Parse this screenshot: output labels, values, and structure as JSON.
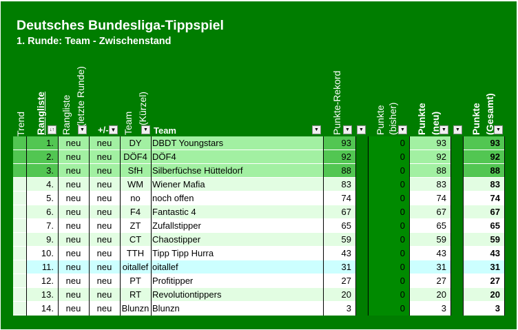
{
  "title": "Deutsches Bundesliga-Tippspiel",
  "subtitle": "1. Runde: Team - Zwischenstand",
  "colors": {
    "background": "#007d00",
    "top3": "#a2f0a2",
    "top3_strong": "#52c652",
    "row_light": "#e2fde2",
    "row_white": "#ffffff",
    "row_cyan": "#ccffff",
    "punkte_col": "#008a00"
  },
  "headers": {
    "trend": "Trend",
    "rangliste": "Rangliste",
    "rangliste_letzte_1": "Rangliste",
    "rangliste_letzte_2": "(letzte Runde)",
    "plusminus": "+/-",
    "team_kuerzel_1": "Team",
    "team_kuerzel_2": "(Kürzel)",
    "team": "Team",
    "punkte_rekord": "Punkte-Rekord",
    "punkte_bisher_1": "Punkte",
    "punkte_bisher_2": "(bisher)",
    "punkte_neu_1": "Punkte",
    "punkte_neu_2": "(neu)",
    "punkte_gesamt_1": "Punkte",
    "punkte_gesamt_2": "(Gesamt)"
  },
  "icons": {
    "dropdown": "dropdown-arrow-icon",
    "sort": "sort-ascending-icon",
    "filter": "filter-icon"
  },
  "rows": [
    {
      "rank": "1.",
      "prev": "neu",
      "pm": "neu",
      "abbr": "DY",
      "team": "DBDT Youngstars",
      "rekord": "93",
      "bisher": "0",
      "neu": "93",
      "gesamt": "93",
      "style": "top"
    },
    {
      "rank": "2.",
      "prev": "neu",
      "pm": "neu",
      "abbr": "DÖF4",
      "team": "DÖF4",
      "rekord": "92",
      "bisher": "0",
      "neu": "92",
      "gesamt": "92",
      "style": "top"
    },
    {
      "rank": "3.",
      "prev": "neu",
      "pm": "neu",
      "abbr": "SfH",
      "team": "Silberfüchse Hütteldorf",
      "rekord": "88",
      "bisher": "0",
      "neu": "88",
      "gesamt": "88",
      "style": "top"
    },
    {
      "rank": "4.",
      "prev": "neu",
      "pm": "neu",
      "abbr": "WM",
      "team": "Wiener Mafia",
      "rekord": "83",
      "bisher": "0",
      "neu": "83",
      "gesamt": "83",
      "style": "light"
    },
    {
      "rank": "5.",
      "prev": "neu",
      "pm": "neu",
      "abbr": "no",
      "team": "noch offen",
      "rekord": "74",
      "bisher": "0",
      "neu": "74",
      "gesamt": "74",
      "style": "white"
    },
    {
      "rank": "6.",
      "prev": "neu",
      "pm": "neu",
      "abbr": "F4",
      "team": "Fantastic 4",
      "rekord": "67",
      "bisher": "0",
      "neu": "67",
      "gesamt": "67",
      "style": "light"
    },
    {
      "rank": "7.",
      "prev": "neu",
      "pm": "neu",
      "abbr": "ZT",
      "team": "Zufallstipper",
      "rekord": "65",
      "bisher": "0",
      "neu": "65",
      "gesamt": "65",
      "style": "white"
    },
    {
      "rank": "9.",
      "prev": "neu",
      "pm": "neu",
      "abbr": "CT",
      "team": "Chaostipper",
      "rekord": "59",
      "bisher": "0",
      "neu": "59",
      "gesamt": "59",
      "style": "light"
    },
    {
      "rank": "10.",
      "prev": "neu",
      "pm": "neu",
      "abbr": "TTH",
      "team": "Tipp Tipp Hurra",
      "rekord": "43",
      "bisher": "0",
      "neu": "43",
      "gesamt": "43",
      "style": "white"
    },
    {
      "rank": "11.",
      "prev": "neu",
      "pm": "neu",
      "abbr": "oitallef",
      "team": "oitallef",
      "rekord": "31",
      "bisher": "0",
      "neu": "31",
      "gesamt": "31",
      "style": "cyan"
    },
    {
      "rank": "12.",
      "prev": "neu",
      "pm": "neu",
      "abbr": "PT",
      "team": "Profitipper",
      "rekord": "27",
      "bisher": "0",
      "neu": "27",
      "gesamt": "27",
      "style": "white"
    },
    {
      "rank": "13.",
      "prev": "neu",
      "pm": "neu",
      "abbr": "RT",
      "team": "Revolutiontippers",
      "rekord": "20",
      "bisher": "0",
      "neu": "20",
      "gesamt": "20",
      "style": "light"
    },
    {
      "rank": "14.",
      "prev": "neu",
      "pm": "neu",
      "abbr": "Blunzn",
      "team": "Blunzn",
      "rekord": "3",
      "bisher": "0",
      "neu": "3",
      "gesamt": "3",
      "style": "white"
    }
  ]
}
